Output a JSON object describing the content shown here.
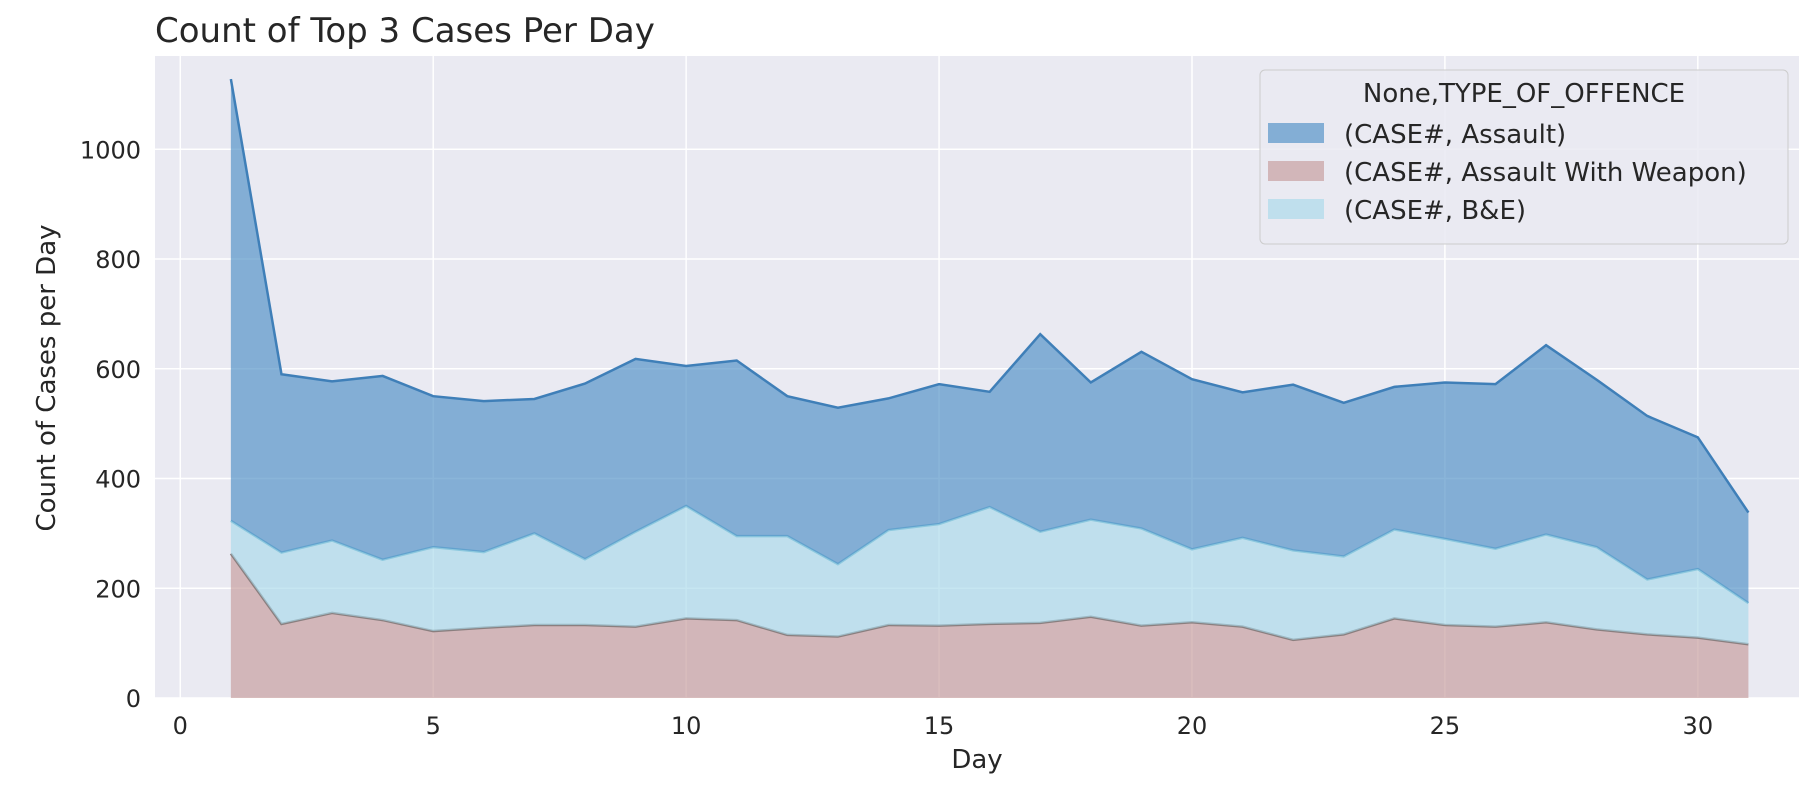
{
  "chart_data": {
    "type": "area",
    "stacked": true,
    "title": "Count of Top 3 Cases Per Day",
    "xlabel": "Day",
    "ylabel": "Count of Cases per Day",
    "xlim": [
      -0.5,
      32
    ],
    "ylim": [
      0,
      1170
    ],
    "xticks": [
      0,
      5,
      10,
      15,
      20,
      25,
      30
    ],
    "yticks": [
      0,
      200,
      400,
      600,
      800,
      1000
    ],
    "grid": true,
    "legend": {
      "title": "None,TYPE_OF_OFFENCE",
      "position": "top-right"
    },
    "x": [
      1,
      2,
      3,
      4,
      5,
      6,
      7,
      8,
      9,
      10,
      11,
      12,
      13,
      14,
      15,
      16,
      17,
      18,
      19,
      20,
      21,
      22,
      23,
      24,
      25,
      26,
      27,
      28,
      29,
      30,
      31
    ],
    "series": [
      {
        "name": "(CASE#, Assault)",
        "color": "#4c8dc4",
        "values": [
          805,
          325,
          290,
          335,
          275,
          275,
          245,
          320,
          315,
          255,
          320,
          255,
          285,
          240,
          255,
          210,
          360,
          250,
          322,
          310,
          265,
          302,
          280,
          260,
          285,
          300,
          345,
          305,
          298,
          240,
          165
        ]
      },
      {
        "name": "(CASE#, Assault With Weapon)",
        "color": "#c49a9a",
        "values": [
          263,
          135,
          155,
          142,
          122,
          128,
          133,
          133,
          130,
          145,
          142,
          115,
          112,
          133,
          132,
          135,
          137,
          148,
          132,
          138,
          130,
          106,
          116,
          145,
          133,
          130,
          138,
          125,
          116,
          110,
          98
        ]
      },
      {
        "name": "(CASE#, B&E)",
        "color": "#a8d8ea",
        "values": [
          60,
          130,
          132,
          110,
          153,
          138,
          167,
          120,
          173,
          205,
          153,
          180,
          132,
          173,
          185,
          213,
          166,
          177,
          177,
          133,
          162,
          163,
          142,
          162,
          157,
          142,
          160,
          150,
          100,
          125,
          75
        ]
      }
    ]
  }
}
